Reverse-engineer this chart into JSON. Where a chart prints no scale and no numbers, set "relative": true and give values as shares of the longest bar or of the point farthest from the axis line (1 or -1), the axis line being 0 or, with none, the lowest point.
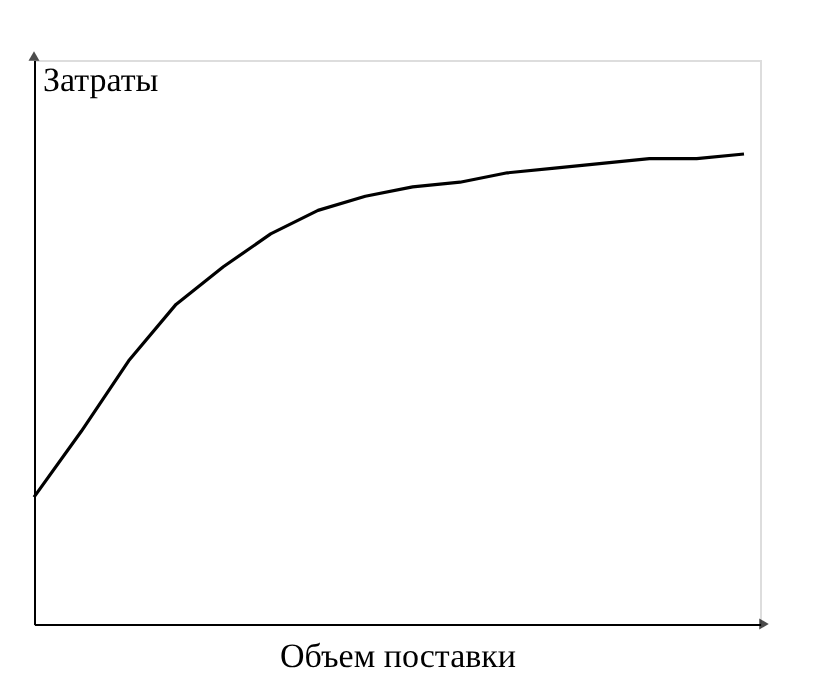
{
  "chart_data": {
    "type": "line",
    "relative": true,
    "xlabel": "Объем поставки",
    "ylabel": "Затраты",
    "categories": [
      null,
      null,
      null,
      null,
      null,
      null,
      null,
      null,
      null,
      null,
      null,
      null,
      null,
      null,
      null,
      null
    ],
    "series": [
      {
        "color": "#000000",
        "values": [
          0.27,
          0.41,
          0.56,
          0.68,
          0.76,
          0.83,
          0.88,
          0.91,
          0.93,
          0.94,
          0.96,
          0.97,
          0.98,
          0.99,
          0.99,
          1.0
        ]
      }
    ],
    "grid": false,
    "legend": false,
    "tick_labels": false,
    "marker": "none",
    "line_style": "solid"
  }
}
